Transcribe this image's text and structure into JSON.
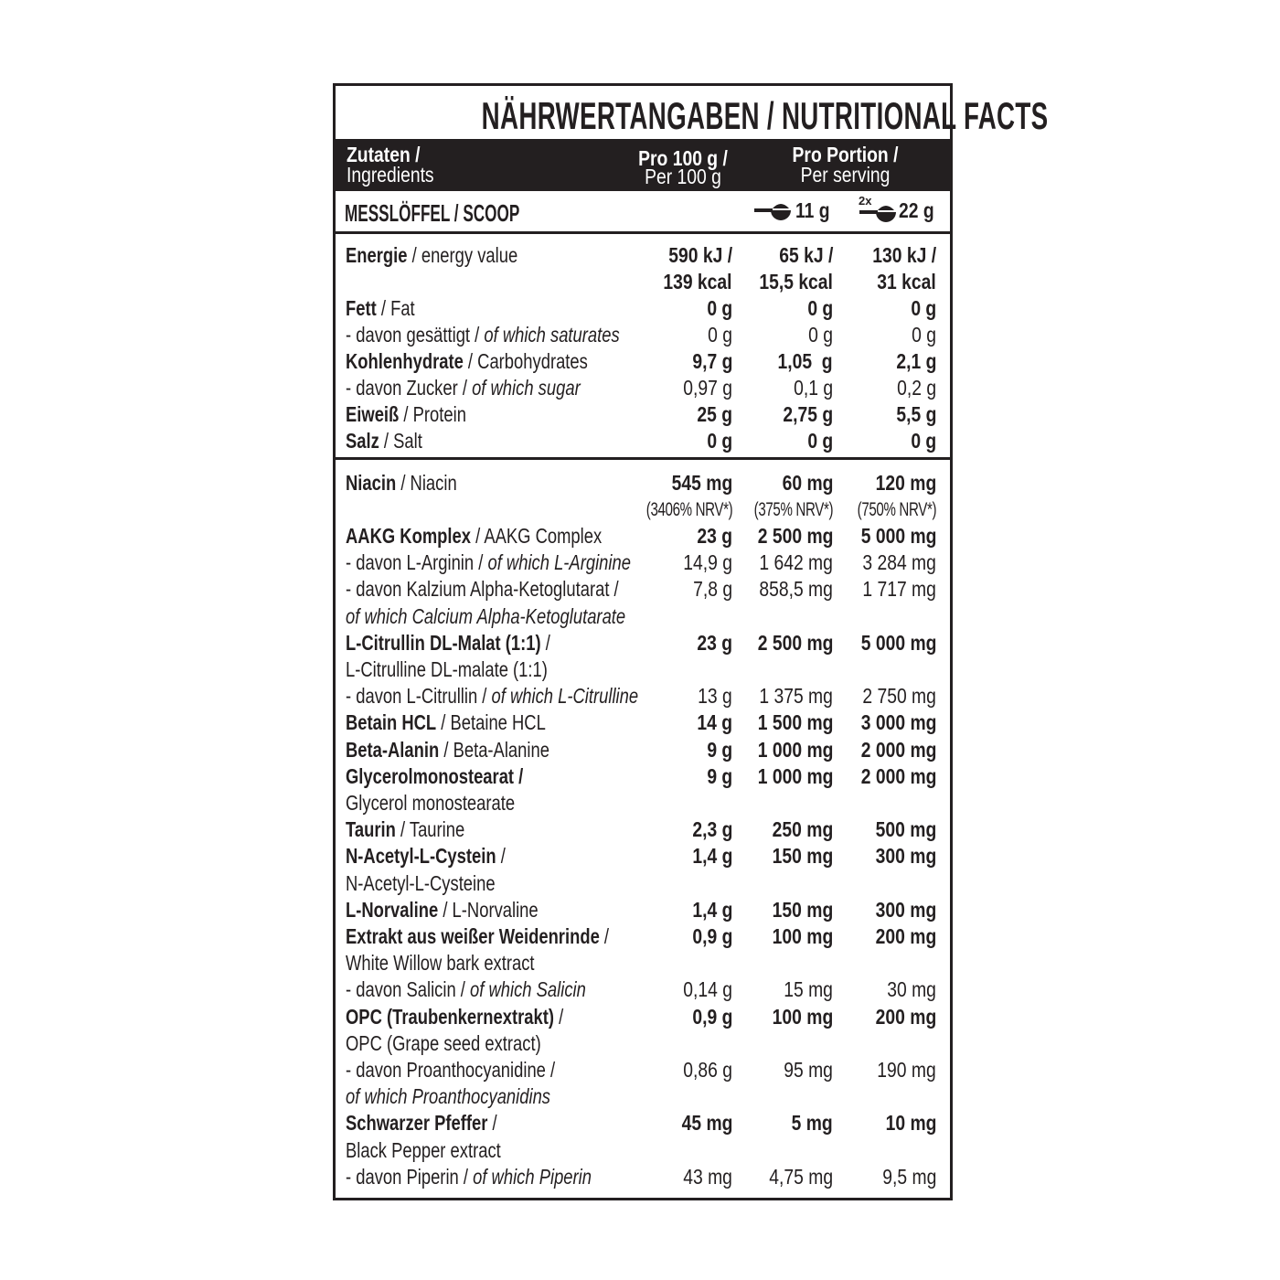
{
  "title": "NÄHRWERTANGABEN / NUTRITIONAL FACTS",
  "header": {
    "ingredients_de": "Zutaten /",
    "ingredients_en": "Ingredients",
    "per100_de": "Pro 100 g /",
    "per100_en": "Per 100 g",
    "portion_de": "Pro Portion /",
    "portion_en": "Per serving"
  },
  "scoop": {
    "label": "MESSLÖFFEL / SCOOP",
    "single_icon": "scoop-icon",
    "single": "11 g",
    "double_prefix": "2x",
    "double_icon": "scoop-icon",
    "double": "22 g"
  },
  "colors": {
    "text": "#231f20",
    "header_bg": "#231f20",
    "header_text": "#ffffff"
  },
  "sections": [
    {
      "rows": [
        {
          "label": [
            [
              "b",
              "Energie"
            ],
            [
              "n",
              " / energy value"
            ]
          ],
          "values": [
            "590 kJ /",
            "65 kJ /",
            "130 kJ /"
          ],
          "bold": true
        },
        {
          "label": [],
          "values": [
            "139 kcal",
            "15,5 kcal",
            "31 kcal"
          ],
          "bold": true
        },
        {
          "label": [
            [
              "b",
              "Fett"
            ],
            [
              "n",
              " / Fat"
            ]
          ],
          "values": [
            "0 g",
            "0 g",
            "0 g"
          ],
          "bold": true
        },
        {
          "label": [
            [
              "n",
              "- davon gesättigt / "
            ],
            [
              "i",
              "of which saturates"
            ]
          ],
          "values": [
            "0 g",
            "0 g",
            "0 g"
          ],
          "bold": false
        },
        {
          "label": [
            [
              "b",
              "Kohlenhydrate"
            ],
            [
              "n",
              " / Carbohydrates"
            ]
          ],
          "values": [
            "9,7 g",
            "1,05  g",
            "2,1 g"
          ],
          "bold": true
        },
        {
          "label": [
            [
              "n",
              "- davon Zucker / "
            ],
            [
              "i",
              "of which sugar"
            ]
          ],
          "values": [
            "0,97 g",
            "0,1 g",
            "0,2 g"
          ],
          "bold": false
        },
        {
          "label": [
            [
              "b",
              "Eiweiß"
            ],
            [
              "n",
              " / Protein"
            ]
          ],
          "values": [
            "25 g",
            "2,75 g",
            "5,5 g"
          ],
          "bold": true
        },
        {
          "label": [
            [
              "b",
              "Salz"
            ],
            [
              "n",
              " / Salt"
            ]
          ],
          "values": [
            "0 g",
            "0 g",
            "0 g"
          ],
          "bold": true
        }
      ]
    },
    {
      "rows": [
        {
          "label": [
            [
              "b",
              "Niacin"
            ],
            [
              "n",
              " / Niacin"
            ]
          ],
          "values": [
            "545 mg",
            "60 mg",
            "120 mg"
          ],
          "bold": true
        },
        {
          "label": [],
          "values": [
            "(3406% NRV*)",
            "(375% NRV*)",
            "(750% NRV*)"
          ],
          "bold": false,
          "nrv": true
        },
        {
          "label": [
            [
              "b",
              "AAKG Komplex"
            ],
            [
              "n",
              " / AAKG Complex"
            ]
          ],
          "values": [
            "23 g",
            "2 500 mg",
            "5 000 mg"
          ],
          "bold": true
        },
        {
          "label": [
            [
              "n",
              "- davon L-Arginin / "
            ],
            [
              "i",
              "of which L-Arginine"
            ]
          ],
          "values": [
            "14,9 g",
            "1 642 mg",
            "3 284 mg"
          ],
          "bold": false
        },
        {
          "label": [
            [
              "n",
              "- davon Kalzium Alpha-Ketoglutarat /"
            ]
          ],
          "values": [
            "7,8 g",
            "858,5 mg",
            "1 717 mg"
          ],
          "bold": false
        },
        {
          "label": [
            [
              "i",
              "of which Calcium Alpha-Ketoglutarate"
            ]
          ],
          "values": [],
          "bold": false
        },
        {
          "label": [
            [
              "b",
              "L-Citrullin DL-Malat (1:1)"
            ],
            [
              "n",
              " /"
            ]
          ],
          "values": [
            "23 g",
            "2 500 mg",
            "5 000 mg"
          ],
          "bold": true
        },
        {
          "label": [
            [
              "n",
              "L-Citrulline DL-malate (1:1)"
            ]
          ],
          "values": [],
          "bold": false
        },
        {
          "label": [
            [
              "n",
              "- davon L-Citrullin / "
            ],
            [
              "i",
              "of which L-Citrulline"
            ]
          ],
          "values": [
            "13 g",
            "1 375 mg",
            "2 750 mg"
          ],
          "bold": false
        },
        {
          "label": [
            [
              "b",
              "Betain HCL"
            ],
            [
              "n",
              " / Betaine HCL"
            ]
          ],
          "values": [
            "14 g",
            "1 500 mg",
            "3 000 mg"
          ],
          "bold": true
        },
        {
          "label": [
            [
              "b",
              "Beta-Alanin"
            ],
            [
              "n",
              " / Beta-Alanine"
            ]
          ],
          "values": [
            "9 g",
            "1 000 mg",
            "2 000 mg"
          ],
          "bold": true
        },
        {
          "label": [
            [
              "b",
              "Glycerolmonostearat /"
            ]
          ],
          "values": [
            "9 g",
            "1 000 mg",
            "2 000 mg"
          ],
          "bold": true
        },
        {
          "label": [
            [
              "n",
              "Glycerol monostearate"
            ]
          ],
          "values": [],
          "bold": false
        },
        {
          "label": [
            [
              "b",
              "Taurin"
            ],
            [
              "n",
              " / Taurine"
            ]
          ],
          "values": [
            "2,3 g",
            "250 mg",
            "500 mg"
          ],
          "bold": true
        },
        {
          "label": [
            [
              "b",
              "N-Acetyl-L-Cystein"
            ],
            [
              "n",
              " /"
            ]
          ],
          "values": [
            "1,4 g",
            "150 mg",
            "300 mg"
          ],
          "bold": true
        },
        {
          "label": [
            [
              "n",
              "N-Acetyl-L-Cysteine"
            ]
          ],
          "values": [],
          "bold": false
        },
        {
          "label": [
            [
              "b",
              "L-Norvaline"
            ],
            [
              "n",
              " / L-Norvaline"
            ]
          ],
          "values": [
            "1,4 g",
            "150 mg",
            "300 mg"
          ],
          "bold": true
        },
        {
          "label": [
            [
              "b",
              "Extrakt aus weißer Weidenrinde"
            ],
            [
              "n",
              " /"
            ]
          ],
          "values": [
            "0,9 g",
            "100 mg",
            "200 mg"
          ],
          "bold": true
        },
        {
          "label": [
            [
              "n",
              "White Willow bark extract"
            ]
          ],
          "values": [],
          "bold": false
        },
        {
          "label": [
            [
              "n",
              "- davon Salicin / "
            ],
            [
              "i",
              "of which Salicin"
            ]
          ],
          "values": [
            "0,14 g",
            "15 mg",
            "30 mg"
          ],
          "bold": false
        },
        {
          "label": [
            [
              "b",
              "OPC (Traubenkernextrakt)"
            ],
            [
              "n",
              " /"
            ]
          ],
          "values": [
            "0,9 g",
            "100 mg",
            "200 mg"
          ],
          "bold": true
        },
        {
          "label": [
            [
              "n",
              "OPC (Grape seed extract)"
            ]
          ],
          "values": [],
          "bold": false
        },
        {
          "label": [
            [
              "n",
              "- davon Proanthocyanidine /"
            ]
          ],
          "values": [
            "0,86 g",
            "95 mg",
            "190 mg"
          ],
          "bold": false
        },
        {
          "label": [
            [
              "i",
              "of which Proanthocyanidins"
            ]
          ],
          "values": [],
          "bold": false
        },
        {
          "label": [
            [
              "b",
              "Schwarzer Pfeffer"
            ],
            [
              "n",
              " /"
            ]
          ],
          "values": [
            "45 mg",
            "5 mg",
            "10 mg"
          ],
          "bold": true
        },
        {
          "label": [
            [
              "n",
              "Black Pepper extract"
            ]
          ],
          "values": [],
          "bold": false
        },
        {
          "label": [
            [
              "n",
              "- davon Piperin / "
            ],
            [
              "i",
              "of which Piperin"
            ]
          ],
          "values": [
            "43 mg",
            "4,75 mg",
            "9,5 mg"
          ],
          "bold": false
        }
      ]
    }
  ]
}
